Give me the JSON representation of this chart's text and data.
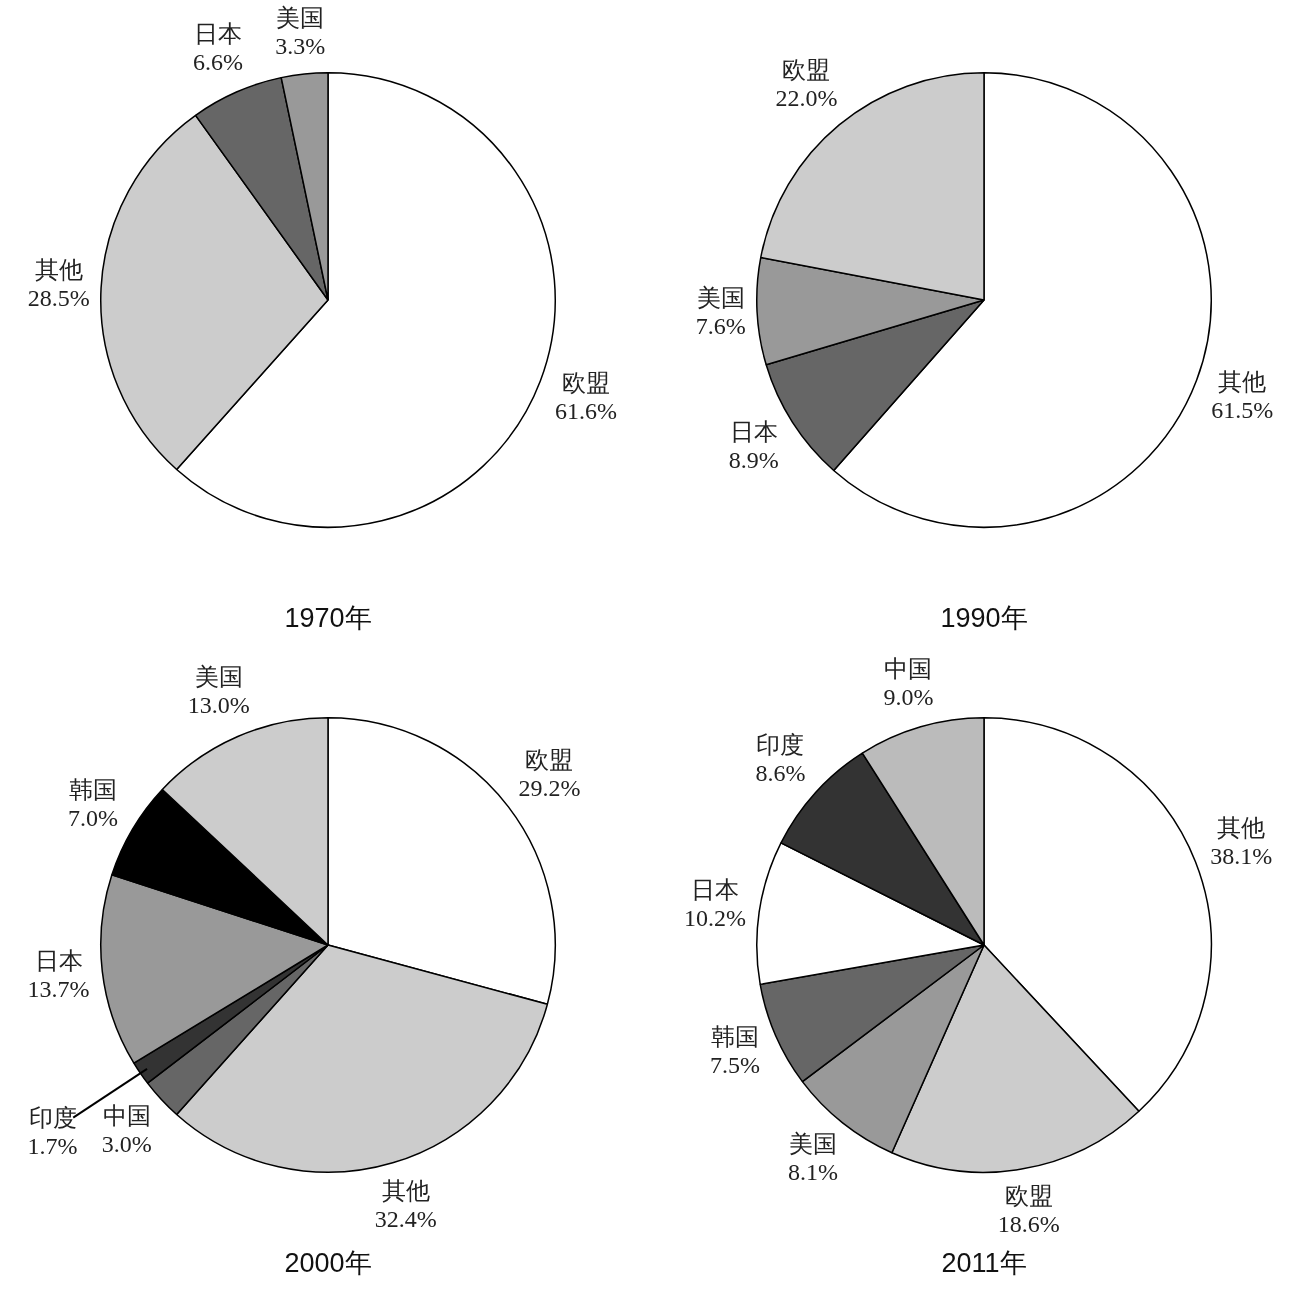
{
  "chart_data": [
    {
      "type": "pie",
      "title": "1970年",
      "categories": [
        "欧盟",
        "其他",
        "日本",
        "美国"
      ],
      "values": [
        61.6,
        28.5,
        6.6,
        3.3
      ],
      "value_labels": [
        "61.6%",
        "28.5%",
        "6.6%",
        "3.3%"
      ],
      "colors": [
        "#ffffff",
        "#cccccc",
        "#666666",
        "#999999"
      ]
    },
    {
      "type": "pie",
      "title": "1990年",
      "categories": [
        "其他",
        "日本",
        "美国",
        "欧盟"
      ],
      "values": [
        61.5,
        8.9,
        7.6,
        22.0
      ],
      "value_labels": [
        "61.5%",
        "8.9%",
        "7.6%",
        "22.0%"
      ],
      "colors": [
        "#ffffff",
        "#666666",
        "#999999",
        "#cccccc"
      ]
    },
    {
      "type": "pie",
      "title": "2000年",
      "categories": [
        "欧盟",
        "其他",
        "中国",
        "印度",
        "日本",
        "韩国",
        "美国"
      ],
      "values": [
        29.2,
        32.4,
        3.0,
        1.7,
        13.7,
        7.0,
        13.0
      ],
      "value_labels": [
        "29.2%",
        "32.4%",
        "3.0%",
        "1.7%",
        "13.7%",
        "7.0%",
        "13.0%"
      ],
      "colors": [
        "#ffffff",
        "#cccccc",
        "#666666",
        "#333333",
        "#999999",
        "#000000",
        "#cccccc"
      ]
    },
    {
      "type": "pie",
      "title": "2011年",
      "categories": [
        "其他",
        "欧盟",
        "美国",
        "韩国",
        "日本",
        "印度",
        "中国"
      ],
      "values": [
        38.1,
        18.6,
        8.1,
        7.5,
        10.2,
        8.6,
        9.0
      ],
      "value_labels": [
        "38.1%",
        "18.6%",
        "8.1%",
        "7.5%",
        "10.2%",
        "8.6%",
        "9.0%"
      ],
      "colors": [
        "#ffffff",
        "#cccccc",
        "#999999",
        "#666666",
        "#ffffff",
        "#333333",
        "#bbbbbb"
      ]
    }
  ]
}
